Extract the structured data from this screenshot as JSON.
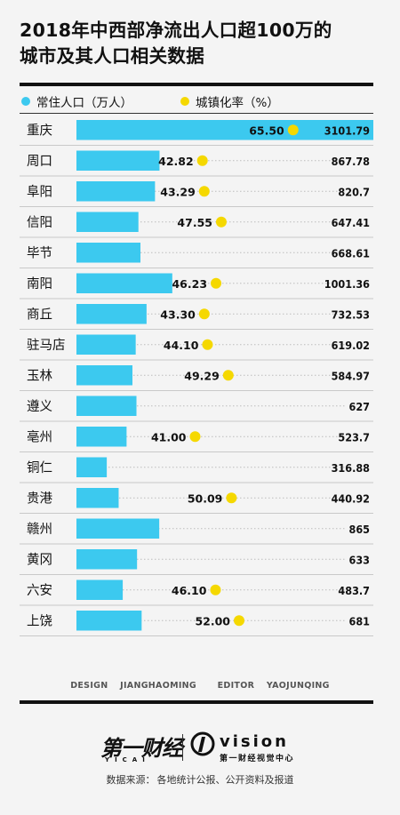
{
  "header": {
    "title_line1": "2018年中西部净流出人口超100万的",
    "title_line2": "城市及其人口相关数据"
  },
  "legend": {
    "population_label": "常住人口（万人）",
    "urbanization_label": "城镇化率（%）"
  },
  "colors": {
    "bar": "#3cc9ef",
    "dot": "#f5d800",
    "text": "#111111"
  },
  "chart_data": {
    "type": "bar",
    "orientation": "horizontal",
    "categories": [
      "重庆",
      "周口",
      "阜阳",
      "信阳",
      "毕节",
      "南阳",
      "商丘",
      "驻马店",
      "玉林",
      "遵义",
      "亳州",
      "铜仁",
      "贵港",
      "赣州",
      "黄冈",
      "六安",
      "上饶"
    ],
    "series": [
      {
        "name": "常住人口（万人）",
        "values": [
          3101.79,
          867.78,
          820.7,
          647.41,
          668.61,
          1001.36,
          732.53,
          619.02,
          584.97,
          627,
          523.7,
          316.88,
          440.92,
          865,
          633,
          483.7,
          681
        ],
        "labels": [
          "3101.79",
          "867.78",
          "820.7",
          "647.41",
          "668.61",
          "1001.36",
          "732.53",
          "619.02",
          "584.97",
          "627",
          "523.7",
          "316.88",
          "440.92",
          "865",
          "633",
          "483.7",
          "681"
        ]
      },
      {
        "name": "城镇化率（%）",
        "values": [
          65.5,
          42.82,
          43.29,
          47.55,
          null,
          46.23,
          43.3,
          44.1,
          49.29,
          null,
          41.0,
          null,
          50.09,
          null,
          null,
          46.1,
          52.0
        ],
        "labels": [
          "65.50",
          "42.82",
          "43.29",
          "47.55",
          "",
          "46.23",
          "43.30",
          "44.10",
          "49.29",
          "",
          "41.00",
          "",
          "50.09",
          "",
          "",
          "46.10",
          "52.00"
        ]
      }
    ],
    "population_range": [
      0,
      3101.79
    ],
    "urbanization_range": [
      30,
      70
    ],
    "legend_position": "top-left",
    "grid": false
  },
  "credits": {
    "design_label": "DESIGN",
    "design_name": "JIANGHAOMING",
    "editor_label": "EDITOR",
    "editor_name": "YAOJUNQING"
  },
  "branding": {
    "yicai_cn": "第一财经",
    "yicai_en": "YICAI",
    "vision_word": "vision",
    "vision_sub": "第一财经视觉中心"
  },
  "source": {
    "label": "数据来源：",
    "text": "各地统计公报、公开资料及报道"
  }
}
